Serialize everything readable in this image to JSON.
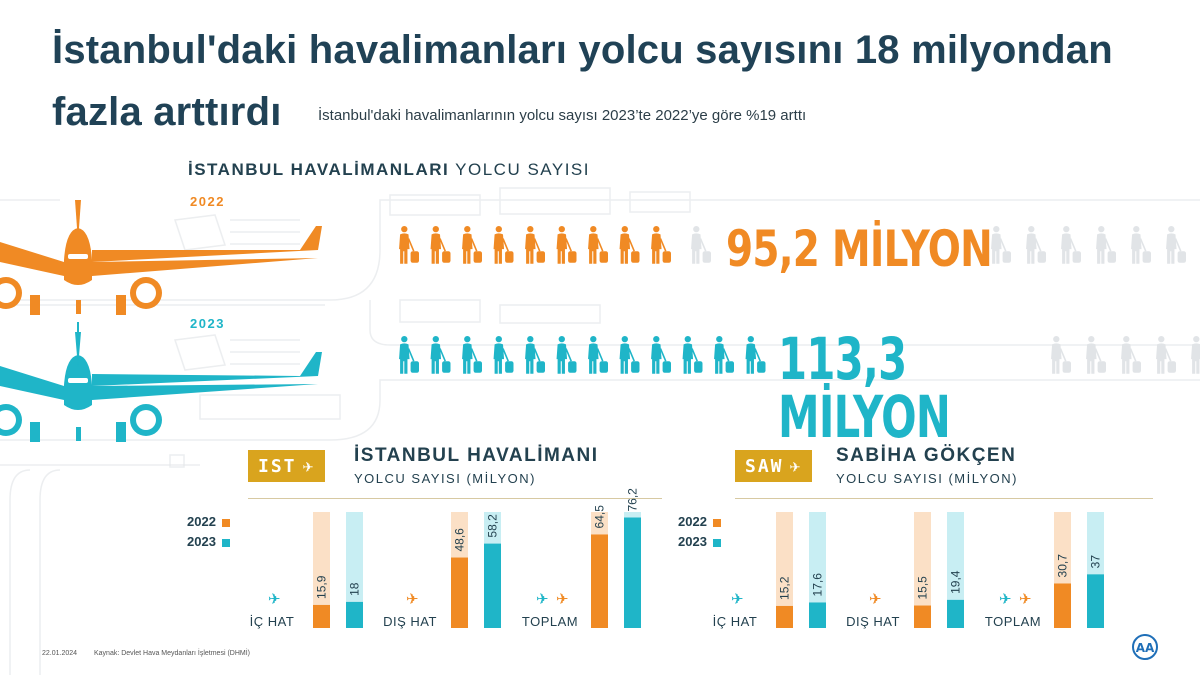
{
  "title_line1": "İstanbul'daki havalimanları yolcu sayısını 18 milyondan",
  "title_line2": "fazla arttırdı",
  "subtitle": "İstanbul'daki havalimanlarının yolcu sayısı 2023’te 2022’ye göre %19 arttı",
  "section": {
    "bold": "İSTANBUL HAVALİMANLARI",
    "rest": " YOLCU SAYISI"
  },
  "colors": {
    "2022": "#f08a24",
    "2023": "#1fb5c8",
    "gold": "#d9a41e",
    "navy": "#204256"
  },
  "totals": [
    {
      "year": "2022",
      "label": "95,2 MİLYON",
      "value": 95.2
    },
    {
      "year": "2023",
      "label": "113,3 MİLYON",
      "value": 113.3
    }
  ],
  "legend": {
    "y2022": "2022",
    "y2023": "2023"
  },
  "airports": [
    {
      "code": "IST",
      "name": "İSTANBUL HAVALİMANI",
      "sub": "YOLCU SAYISI (MİLYON)"
    },
    {
      "code": "SAW",
      "name": "SABİHA GÖKÇEN",
      "sub": "YOLCU SAYISI (MİLYON)"
    }
  ],
  "icons": {
    "plane": "airplane-icon",
    "person": "traveler-icon",
    "logo": "aa-logo"
  },
  "chart_data": [
    {
      "type": "bar",
      "title": "İSTANBUL HAVALİMANI",
      "subtitle": "YOLCU SAYISI (MİLYON)",
      "categories": [
        "İÇ HAT",
        "DIŞ HAT",
        "TOPLAM"
      ],
      "series": [
        {
          "name": "2022",
          "values": [
            15.9,
            48.6,
            64.5
          ],
          "labels": [
            "15,9",
            "48,6",
            "64,5"
          ]
        },
        {
          "name": "2023",
          "values": [
            18,
            58.2,
            76.2
          ],
          "labels": [
            "18",
            "58,2",
            "76,2"
          ]
        }
      ],
      "ylim": [
        0,
        80
      ],
      "legend": "top-left"
    },
    {
      "type": "bar",
      "title": "SABİHA GÖKÇEN",
      "subtitle": "YOLCU SAYISI (MİLYON)",
      "categories": [
        "İÇ HAT",
        "DIŞ HAT",
        "TOPLAM"
      ],
      "series": [
        {
          "name": "2022",
          "values": [
            15.2,
            15.5,
            30.7
          ],
          "labels": [
            "15,2",
            "15,5",
            "30,7"
          ]
        },
        {
          "name": "2023",
          "values": [
            17.6,
            19.4,
            37
          ],
          "labels": [
            "17,6",
            "19,4",
            "37"
          ]
        }
      ],
      "ylim": [
        0,
        80
      ],
      "legend": "top-left"
    }
  ],
  "footer": {
    "date": "22.01.2024",
    "source": "Kaynak: Devlet Hava Meydanları İşletmesi (DHMİ)"
  }
}
